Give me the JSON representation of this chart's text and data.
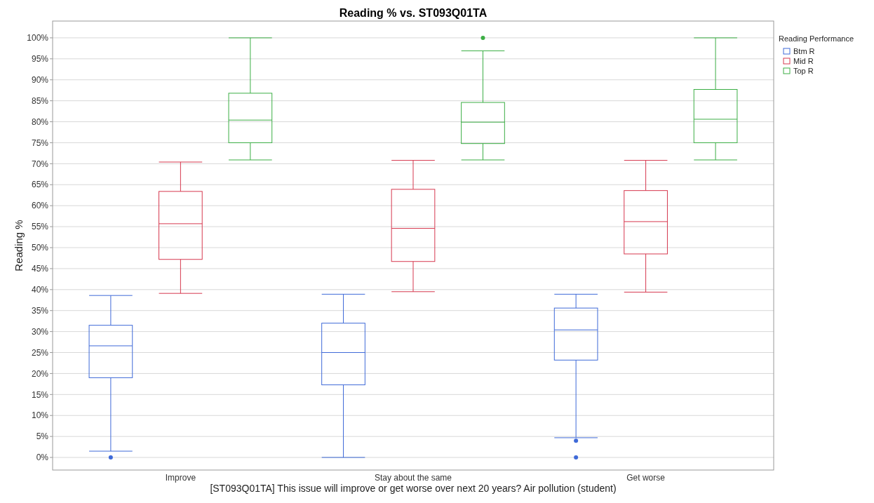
{
  "chart_data": {
    "type": "box",
    "title": "Reading % vs. ST093Q01TA",
    "xlabel": "[ST093Q01TA] This issue will improve or get worse over next 20 years? Air pollution (student)",
    "ylabel": "Reading %",
    "legend_title": "Reading Performance",
    "categories": [
      "Improve",
      "Stay about the same",
      "Get worse"
    ],
    "series": [
      {
        "name": "Btm R",
        "color": "#3f6ad8",
        "boxes": [
          {
            "low": 1.5,
            "q1": 19,
            "median": 26.6,
            "q3": 31.5,
            "high": 38.6,
            "outliers": [
              0
            ]
          },
          {
            "low": 0,
            "q1": 17.3,
            "median": 25,
            "q3": 32,
            "high": 38.9
          },
          {
            "low": 4.7,
            "q1": 23.2,
            "median": 30.4,
            "q3": 35.6,
            "high": 38.9,
            "outliers": [
              0,
              4
            ]
          }
        ]
      },
      {
        "name": "Mid R",
        "color": "#d6394f",
        "boxes": [
          {
            "low": 39.1,
            "q1": 47.2,
            "median": 55.7,
            "q3": 63.4,
            "high": 70.4
          },
          {
            "low": 39.5,
            "q1": 46.7,
            "median": 54.6,
            "q3": 63.9,
            "high": 70.8
          },
          {
            "low": 39.4,
            "q1": 48.5,
            "median": 56.2,
            "q3": 63.6,
            "high": 70.8
          }
        ]
      },
      {
        "name": "Top R",
        "color": "#3cae45",
        "boxes": [
          {
            "low": 70.9,
            "q1": 75,
            "median": 80.4,
            "q3": 86.8,
            "high": 100
          },
          {
            "low": 70.9,
            "q1": 74.8,
            "median": 79.9,
            "q3": 84.6,
            "high": 96.9,
            "outliers": [
              100
            ]
          },
          {
            "low": 70.9,
            "q1": 75,
            "median": 80.6,
            "q3": 87.7,
            "high": 100
          }
        ]
      }
    ],
    "ylim": [
      -3,
      104
    ],
    "yticks": [
      {
        "value": 0,
        "label": "0%"
      },
      {
        "value": 5,
        "label": "5%"
      },
      {
        "value": 10,
        "label": "10%"
      },
      {
        "value": 15,
        "label": "15%"
      },
      {
        "value": 20,
        "label": "20%"
      },
      {
        "value": 25,
        "label": "25%"
      },
      {
        "value": 30,
        "label": "30%"
      },
      {
        "value": 35,
        "label": "35%"
      },
      {
        "value": 40,
        "label": "40%"
      },
      {
        "value": 45,
        "label": "45%"
      },
      {
        "value": 50,
        "label": "50%"
      },
      {
        "value": 55,
        "label": "55%"
      },
      {
        "value": 60,
        "label": "60%"
      },
      {
        "value": 65,
        "label": "65%"
      },
      {
        "value": 70,
        "label": "70%"
      },
      {
        "value": 75,
        "label": "75%"
      },
      {
        "value": 80,
        "label": "80%"
      },
      {
        "value": 85,
        "label": "85%"
      },
      {
        "value": 90,
        "label": "90%"
      },
      {
        "value": 95,
        "label": "95%"
      },
      {
        "value": 100,
        "label": "100%"
      }
    ],
    "grid": "y",
    "legend": "top right"
  }
}
